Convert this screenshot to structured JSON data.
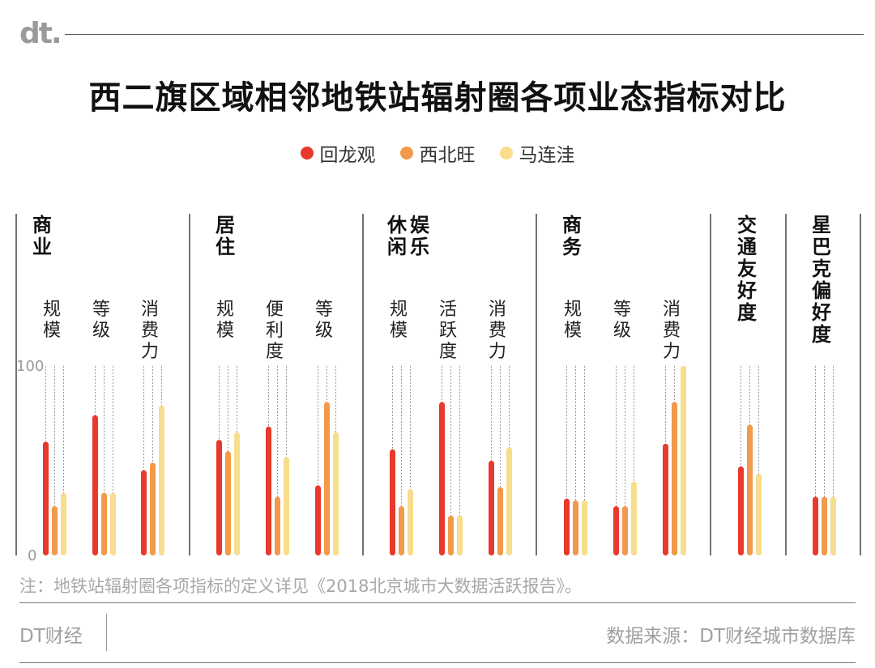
{
  "logo": "dt.",
  "brand": "DT财经",
  "source": "数据来源：DT财经城市数据库",
  "note": "注：地铁站辐射圈各项指标的定义详见《2018北京城市大数据活跃报告》。",
  "chart_data": {
    "type": "bar",
    "title": "西二旗区域相邻地铁站辐射圈各项业态指标对比",
    "ylim": [
      0,
      100
    ],
    "yticks": [
      "0",
      "100"
    ],
    "legend_position": "top-center",
    "series": [
      {
        "name": "回龙观",
        "color": "#e8392c"
      },
      {
        "name": "西北旺",
        "color": "#f2994a"
      },
      {
        "name": "马连洼",
        "color": "#f7dd8c"
      }
    ],
    "groups": [
      {
        "name": "商业",
        "metrics": [
          {
            "name": "规模",
            "values": [
              60,
              26,
              33
            ]
          },
          {
            "name": "等级",
            "values": [
              74,
              33,
              33
            ]
          },
          {
            "name": "消费力",
            "values": [
              45,
              49,
              79
            ]
          }
        ]
      },
      {
        "name": "居住",
        "metrics": [
          {
            "name": "规模",
            "values": [
              61,
              55,
              65
            ]
          },
          {
            "name": "便利度",
            "values": [
              68,
              31,
              52
            ]
          },
          {
            "name": "等级",
            "values": [
              37,
              81,
              65
            ]
          }
        ]
      },
      {
        "name": "休闲娱乐",
        "metrics": [
          {
            "name": "规模",
            "values": [
              56,
              26,
              35
            ]
          },
          {
            "name": "活跃度",
            "values": [
              81,
              21,
              21
            ]
          },
          {
            "name": "消费力",
            "values": [
              50,
              36,
              57
            ]
          }
        ]
      },
      {
        "name": "商务",
        "metrics": [
          {
            "name": "规模",
            "values": [
              30,
              29,
              29
            ]
          },
          {
            "name": "等级",
            "values": [
              26,
              26,
              39
            ]
          },
          {
            "name": "消费力",
            "values": [
              59,
              81,
              100
            ]
          }
        ]
      },
      {
        "name": "交通友好度",
        "metrics": [
          {
            "name": "",
            "values": [
              47,
              69,
              43
            ]
          }
        ]
      },
      {
        "name": "星巴克偏好度",
        "metrics": [
          {
            "name": "",
            "values": [
              31,
              31,
              31
            ]
          }
        ]
      }
    ]
  }
}
